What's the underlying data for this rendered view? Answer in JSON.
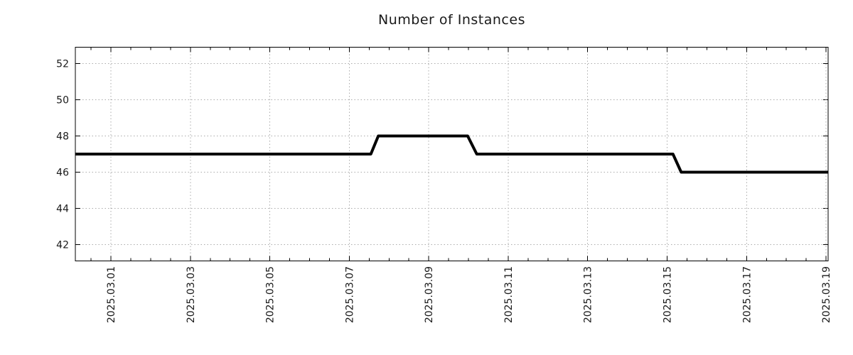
{
  "chart_data": {
    "type": "line",
    "title": "Number of Instances",
    "xlabel": "",
    "ylabel": "",
    "legend": {
      "visible": false
    },
    "grid": {
      "visible": true,
      "style": "dotted",
      "color": "#ababab"
    },
    "colors": {
      "text": "#1a1a1a",
      "border": "#000000",
      "line": "#000000"
    },
    "series": [
      {
        "name": "instances",
        "color": "#000000",
        "line_width": 4,
        "points": [
          [
            "2025-02-28 02:30",
            47
          ],
          [
            "2025-03-07 13:00",
            47
          ],
          [
            "2025-03-07 17:30",
            48
          ],
          [
            "2025-03-09 23:30",
            48
          ],
          [
            "2025-03-10 05:00",
            47
          ],
          [
            "2025-03-15 03:30",
            47
          ],
          [
            "2025-03-15 08:30",
            46
          ],
          [
            "2025-03-19 01:15",
            46
          ]
        ]
      }
    ],
    "x_axis": {
      "start": "2025-02-28 02:30",
      "end": "2025-03-19 01:15",
      "minor_tick_interval_hours": 12,
      "major_ticks": [
        {
          "label": "2025.03.01",
          "date": "2025-03-01 00:00"
        },
        {
          "label": "2025.03.03",
          "date": "2025-03-03 00:00"
        },
        {
          "label": "2025.03.05",
          "date": "2025-03-05 00:00"
        },
        {
          "label": "2025.03.07",
          "date": "2025-03-07 00:00"
        },
        {
          "label": "2025.03.09",
          "date": "2025-03-09 00:00"
        },
        {
          "label": "2025.03.11",
          "date": "2025-03-11 00:00"
        },
        {
          "label": "2025.03.13",
          "date": "2025-03-13 00:00"
        },
        {
          "label": "2025.03.15",
          "date": "2025-03-15 00:00"
        },
        {
          "label": "2025.03.17",
          "date": "2025-03-17 00:00"
        },
        {
          "label": "2025.03.19",
          "date": "2025-03-19 00:00"
        }
      ]
    },
    "y_axis": {
      "min": 41.1,
      "max": 52.9,
      "ticks": [
        52,
        50,
        48,
        46,
        44,
        42
      ]
    }
  }
}
